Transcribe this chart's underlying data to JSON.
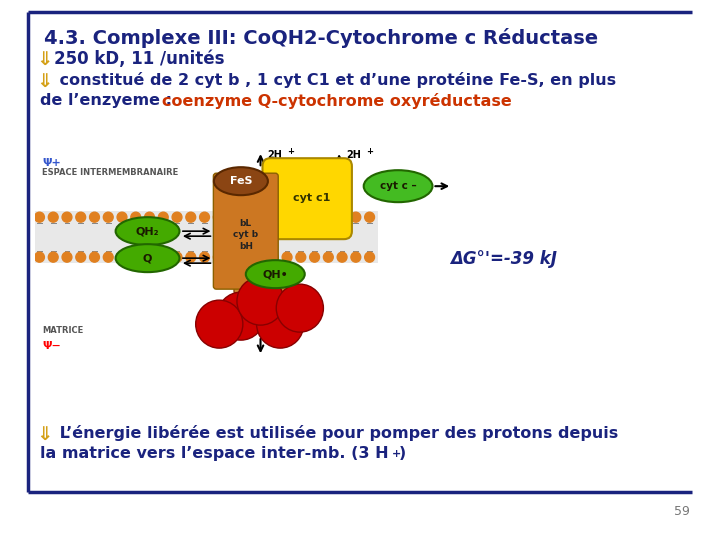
{
  "bg_color": "#ffffff",
  "border_color": "#1a237e",
  "title": "4.3. Complexe III: CoQH2-Cytochrome c Réductase",
  "title_color": "#1a237e",
  "title_fontsize": 14,
  "bullet_color": "#d4a017",
  "bullet1": "250 kD, 11 /unités",
  "bullet1_color": "#1a237e",
  "bullet1_fontsize": 12,
  "bullet2_line1": " constitué de 2 cyt b , 1 cyt C1 et d’une protéine Fe-S, en plus",
  "bullet2_line2a": "de l’enzyeme : ",
  "bullet2_line2b": "coenzyme Q-cytochrome oxyréductase",
  "bullet2_color1": "#1a237e",
  "bullet2_color2": "#cc3300",
  "bullet2_fontsize": 11.5,
  "delta_g": "ΔG°'=-39 kJ",
  "delta_g_color": "#1a237e",
  "bullet3_line1": " L’énergie libérée est utilisée pour pomper des protons depuis",
  "bullet3_line2": "la matrice vers l’espace inter-mb. (3 H",
  "bullet3_sup": "+",
  "bullet3_end": ")",
  "bullet3_color": "#1a237e",
  "bullet3_fontsize": 11.5,
  "page_num": "59",
  "line_color": "#1a237e",
  "arrow_color": "#d4a017",
  "membrane_color": "#c8a060",
  "membrane_dot_color": "#e08020",
  "fes_color": "#8B4513",
  "cytb_color": "#cc7722",
  "cytc1_color": "#FFD700",
  "cytc_color": "#44bb22",
  "qh2_color": "#44aa00",
  "q_color": "#44aa00",
  "qhrad_color": "#44aa00",
  "red_sphere_color": "#cc0000"
}
